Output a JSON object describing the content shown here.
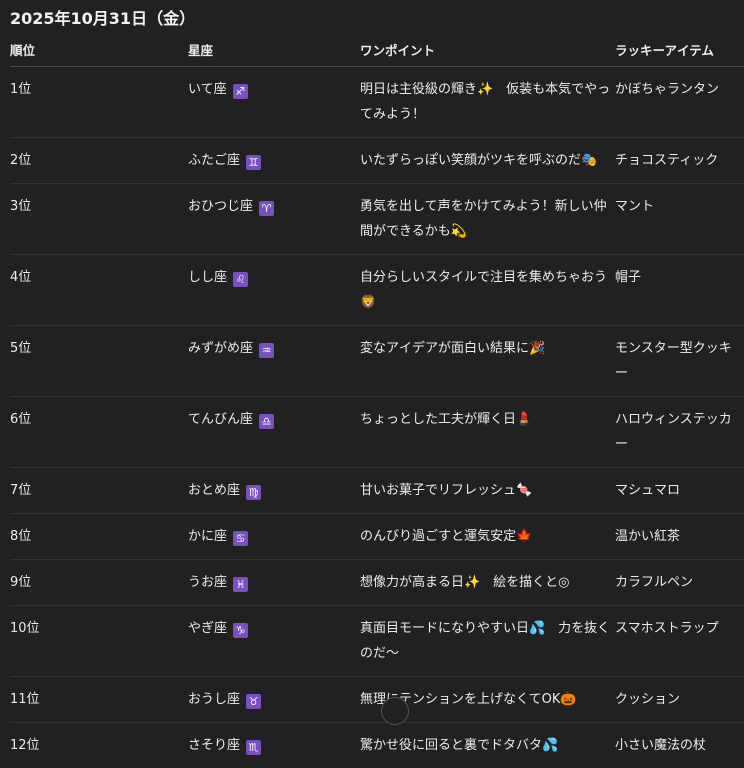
{
  "title": "2025年10月31日（金）",
  "headers": [
    "順位",
    "星座",
    "ワンポイント",
    "ラッキーアイテム"
  ],
  "rows": [
    {
      "rank": "1位",
      "sign": "いて座",
      "symbol": "♐",
      "tip": "明日は主役級の輝き✨　仮装も本気でやってみよう！",
      "item": "かぼちゃランタン"
    },
    {
      "rank": "2位",
      "sign": "ふたご座",
      "symbol": "♊",
      "tip": "いたずらっぽい笑顔がツキを呼ぶのだ🎭",
      "item": "チョコスティック"
    },
    {
      "rank": "3位",
      "sign": "おひつじ座",
      "symbol": "♈",
      "tip": "勇気を出して声をかけてみよう！新しい仲間ができるかも💫",
      "item": "マント"
    },
    {
      "rank": "4位",
      "sign": "しし座",
      "symbol": "♌",
      "tip": "自分らしいスタイルで注目を集めちゃおう🦁",
      "item": "帽子"
    },
    {
      "rank": "5位",
      "sign": "みずがめ座",
      "symbol": "♒",
      "tip": "変なアイデアが面白い結果に🎉",
      "item": "モンスター型クッキー"
    },
    {
      "rank": "6位",
      "sign": "てんびん座",
      "symbol": "♎",
      "tip": "ちょっとした工夫が輝く日💄",
      "item": "ハロウィンステッカー"
    },
    {
      "rank": "7位",
      "sign": "おとめ座",
      "symbol": "♍",
      "tip": "甘いお菓子でリフレッシュ🍬",
      "item": "マシュマロ"
    },
    {
      "rank": "8位",
      "sign": "かに座",
      "symbol": "♋",
      "tip": "のんびり過ごすと運気安定🍁",
      "item": "温かい紅茶"
    },
    {
      "rank": "9位",
      "sign": "うお座",
      "symbol": "♓",
      "tip": "想像力が高まる日✨　絵を描くと◎",
      "item": "カラフルペン"
    },
    {
      "rank": "10位",
      "sign": "やぎ座",
      "symbol": "♑",
      "tip": "真面目モードになりやすい日💦　力を抜くのだ〜",
      "item": "スマホストラップ"
    },
    {
      "rank": "11位",
      "sign": "おうし座",
      "symbol": "♉",
      "tip": "無理にテンションを上げなくてOK🎃",
      "item": "クッション"
    },
    {
      "rank": "12位",
      "sign": "さそり座",
      "symbol": "♏",
      "tip": "驚かせ役に回ると裏でドタバタ💦",
      "item": "小さい魔法の杖"
    }
  ],
  "colors": {
    "background": "#212121",
    "zodiac_badge": "#7b4fc4"
  }
}
